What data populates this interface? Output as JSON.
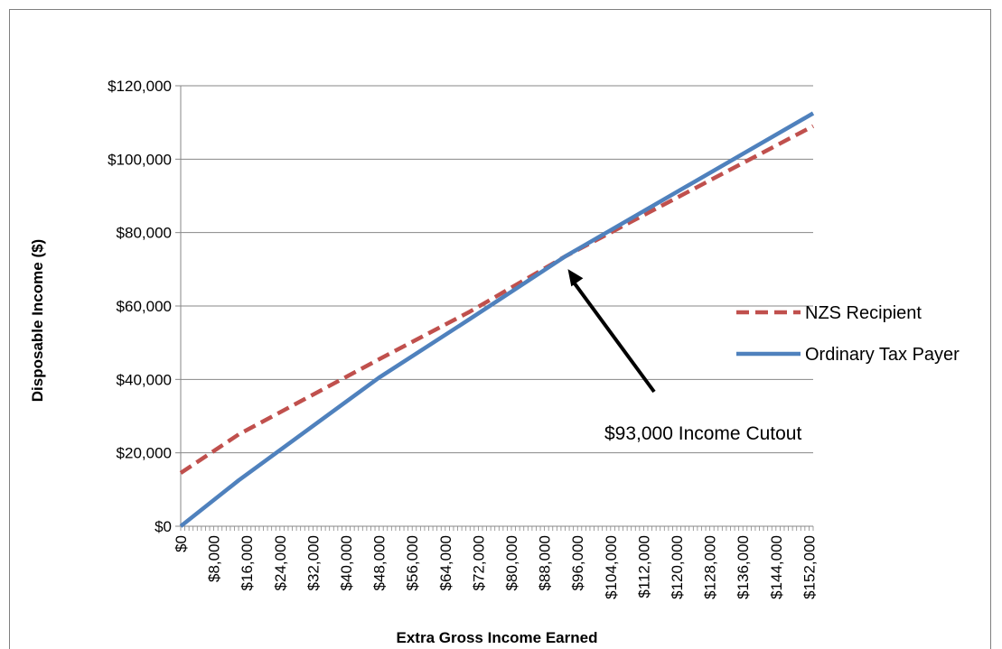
{
  "chart_data": {
    "type": "line",
    "title": "",
    "xlabel": "Extra Gross Income Earned",
    "ylabel": "Disposable Income ($)",
    "x_tick_labels": [
      "$0",
      "$8,000",
      "$16,000",
      "$24,000",
      "$32,000",
      "$40,000",
      "$48,000",
      "$56,000",
      "$64,000",
      "$72,000",
      "$80,000",
      "$88,000",
      "$96,000",
      "$104,000",
      "$112,000",
      "$120,000",
      "$128,000",
      "$136,000",
      "$144,000",
      "$152,000"
    ],
    "x_tick_values": [
      0,
      8000,
      16000,
      24000,
      32000,
      40000,
      48000,
      56000,
      64000,
      72000,
      80000,
      88000,
      96000,
      104000,
      112000,
      120000,
      128000,
      136000,
      144000,
      152000
    ],
    "y_tick_labels": [
      "$0",
      "$20,000",
      "$40,000",
      "$60,000",
      "$80,000",
      "$100,000",
      "$120,000"
    ],
    "y_tick_values": [
      0,
      20000,
      40000,
      60000,
      80000,
      100000,
      120000
    ],
    "xlim": [
      0,
      153000
    ],
    "ylim": [
      0,
      120000
    ],
    "grid": "horizontal",
    "legend_position": "right",
    "series": [
      {
        "name": "NZS Recipient",
        "color": "#c0504d",
        "style": "dashed",
        "points": [
          [
            0,
            14500
          ],
          [
            14000,
            25000
          ],
          [
            48000,
            45500
          ],
          [
            70000,
            58500
          ],
          [
            93000,
            73500
          ],
          [
            153000,
            109000
          ]
        ]
      },
      {
        "name": "Ordinary Tax Payer",
        "color": "#4f81bd",
        "style": "solid",
        "points": [
          [
            0,
            0
          ],
          [
            14000,
            12500
          ],
          [
            48000,
            40500
          ],
          [
            70000,
            56500
          ],
          [
            93000,
            73500
          ],
          [
            153000,
            112500
          ]
        ]
      }
    ],
    "annotations": [
      {
        "text": "$93,000 Income Cutout",
        "arrow_target": [
          93000,
          73500
        ]
      }
    ]
  }
}
